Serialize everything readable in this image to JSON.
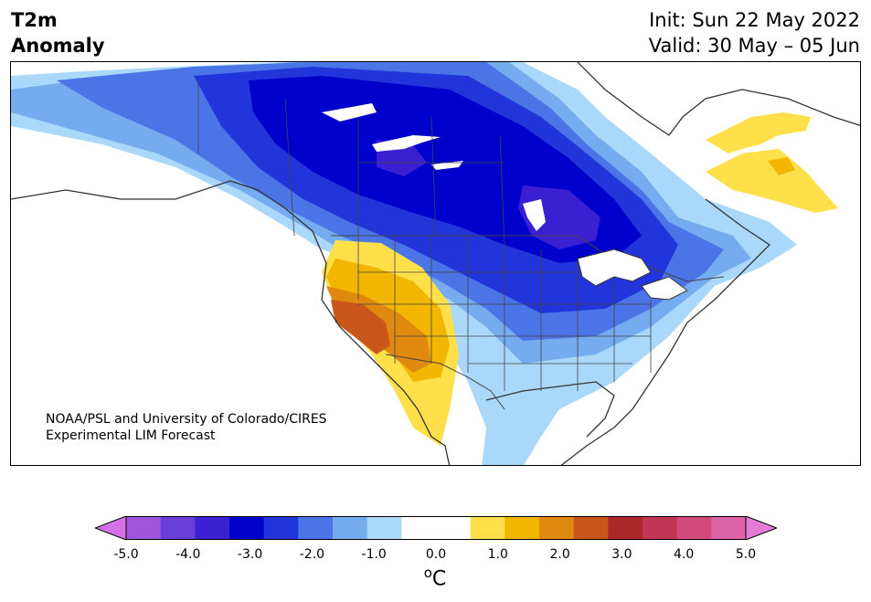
{
  "header": {
    "variable_line1": "T2m",
    "variable_line2": "Anomaly",
    "init": "Init: Sun 22 May 2022",
    "valid": "Valid: 30 May – 05 Jun"
  },
  "credit": {
    "line1": "NOAA/PSL and University of Colorado/CIRES",
    "line2": "Experimental LIM Forecast"
  },
  "colorbar": {
    "tick_labels": [
      "-5.0",
      "-4.0",
      "-3.0",
      "-2.0",
      "-1.0",
      "0.0",
      "1.0",
      "2.0",
      "3.0",
      "4.0",
      "5.0"
    ],
    "unit_symbol": "o",
    "unit_letter": "C",
    "under_color": "#d670e8",
    "over_color": "#e67ad8",
    "colors": [
      "#d670e8",
      "#9e55dc",
      "#6a3ed8",
      "#3a20d2",
      "#0000cc",
      "#2235db",
      "#4b74e6",
      "#74acef",
      "#aad8fb",
      "#ffffff",
      "#ffffff",
      "#ffe04a",
      "#f2b600",
      "#df8a0e",
      "#c9561a",
      "#ac2727",
      "#c23554",
      "#d24a7a",
      "#dc62a6",
      "#e67ad8"
    ]
  },
  "colors": {
    "land_outline": "#333333"
  }
}
